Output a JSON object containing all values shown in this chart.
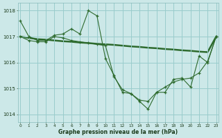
{
  "xlabel": "Graphe pression niveau de la mer (hPa)",
  "background_color": "#cce8e8",
  "grid_color": "#99cccc",
  "line_color": "#2d6a2d",
  "hours": [
    0,
    1,
    2,
    3,
    4,
    5,
    6,
    7,
    8,
    9,
    10,
    11,
    12,
    13,
    14,
    15,
    16,
    17,
    18,
    19,
    20,
    21,
    22,
    23
  ],
  "series1": [
    1017.6,
    1017.0,
    1016.85,
    1016.85,
    1017.05,
    1017.1,
    1017.3,
    1017.1,
    1018.0,
    1017.8,
    1016.15,
    1015.5,
    1014.85,
    1014.8,
    1014.5,
    1014.2,
    1014.85,
    1014.85,
    1015.35,
    1015.4,
    1015.05,
    1016.25,
    1016.0,
    1017.0
  ],
  "series2": [
    1017.0,
    1016.85,
    1016.8,
    1016.8,
    1017.0,
    1016.95,
    1016.85,
    1016.8,
    1016.75,
    1016.7,
    1016.65,
    1015.45,
    1014.95,
    1014.8,
    1014.55,
    1014.5,
    1014.85,
    1015.05,
    1015.25,
    1015.35,
    1015.4,
    1015.6,
    1016.05,
    1017.0
  ],
  "series3": [
    1017.0,
    1016.95,
    1016.9,
    1016.88,
    1016.85,
    1016.82,
    1016.8,
    1016.77,
    1016.75,
    1016.72,
    1016.7,
    1016.68,
    1016.65,
    1016.62,
    1016.6,
    1016.57,
    1016.55,
    1016.52,
    1016.5,
    1016.47,
    1016.45,
    1016.42,
    1016.4,
    1017.0
  ],
  "ylim_min": 1013.7,
  "ylim_max": 1018.3,
  "yticks": [
    1014,
    1015,
    1016,
    1017,
    1018
  ],
  "xlim_min": -0.3,
  "xlim_max": 23.3,
  "figwidth": 3.2,
  "figheight": 2.0,
  "dpi": 100
}
